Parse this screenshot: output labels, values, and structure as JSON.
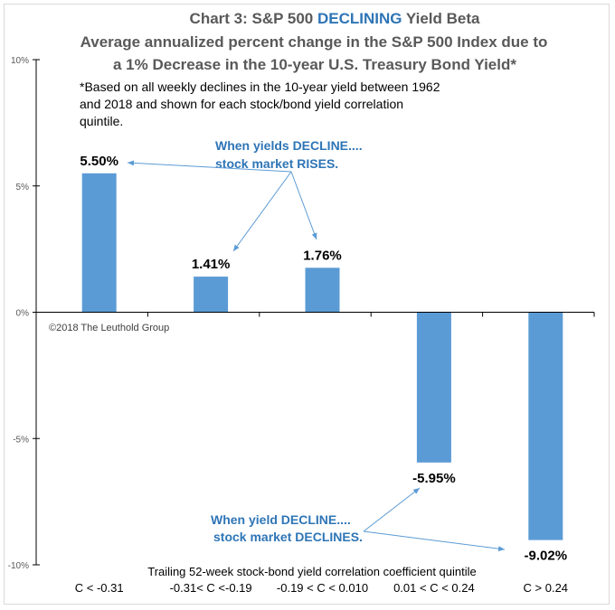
{
  "chart_data": {
    "type": "bar",
    "title_prefix": "Chart 3: S&P 500 ",
    "title_highlight": "DECLINING",
    "title_suffix": " Yield Beta",
    "subtitle_line1": "Average annualized percent change in the S&P 500 Index due to",
    "subtitle_line2": "a 1% Decrease in the 10-year U.S. Treasury Bond Yield*",
    "footnote": [
      "*Based on all weekly declines in the 10-year yield between 1962",
      "and 2018 and shown for each stock/bond yield correlation",
      "quintile."
    ],
    "xlabel": "Trailing 52-week stock-bond yield correlation coefficient quintile",
    "ylabel": "",
    "categories": [
      "C < -0.31",
      "-0.31< C <-0.19",
      "-0.19 < C < 0.010",
      "0.01 < C < 0.24",
      "C > 0.24"
    ],
    "values": [
      5.5,
      1.41,
      1.76,
      -5.95,
      -9.02
    ],
    "data_labels": [
      "5.50%",
      "1.41%",
      "1.76%",
      "-5.95%",
      "-9.02%"
    ],
    "ylim": [
      -10,
      10
    ],
    "yticks": [
      10,
      5,
      0,
      -5,
      -10
    ],
    "ytick_labels": [
      "10%",
      "5%",
      "0%",
      "-5%",
      "-10%"
    ],
    "grid": false,
    "bar_color": "#5b9bd5",
    "highlight_color": "#2e75b6",
    "annotations": [
      {
        "lines": [
          "When yields DECLINE....",
          "stock market RISES."
        ],
        "points_to": [
          0,
          1,
          2
        ]
      },
      {
        "lines": [
          "When yield DECLINE....",
          "stock market DECLINES."
        ],
        "points_to": [
          3,
          4
        ]
      }
    ],
    "copyright": "©2018 The Leuthold Group"
  }
}
